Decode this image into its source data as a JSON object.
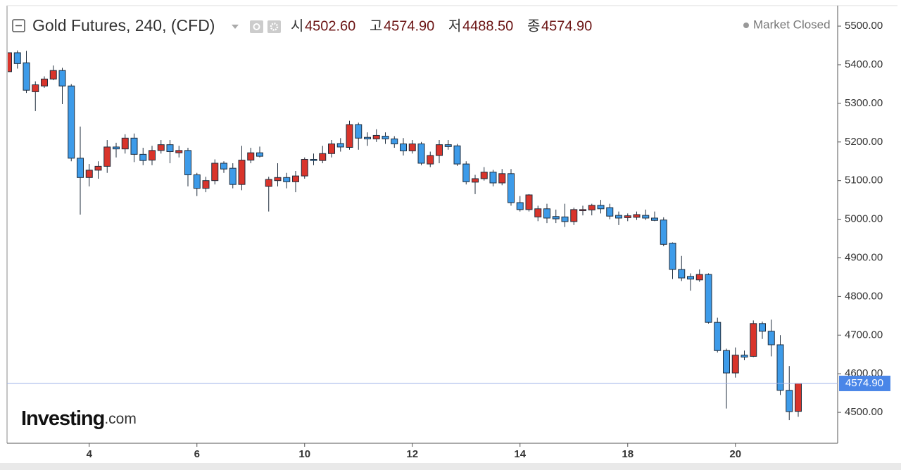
{
  "chart_data": {
    "type": "candlestick",
    "title": "Gold Futures, 240, (CFD)",
    "ohlc_legend": [
      {
        "label": "시",
        "value": "4502.60"
      },
      {
        "label": "고",
        "value": "4574.90"
      },
      {
        "label": "저",
        "value": "4488.50"
      },
      {
        "label": "종",
        "value": "4574.90"
      }
    ],
    "status": "Market Closed",
    "logo": {
      "brand": "Investing",
      "suffix": ".com"
    },
    "last_price": {
      "value": 4574.9,
      "label": "4574.90"
    },
    "up_color": "#d9342b",
    "down_color": "#3d9be9",
    "border_color": "#1f2d3d",
    "price_line_color": "#9fb3e8",
    "categories": [
      null,
      null,
      null,
      null,
      null,
      null,
      null,
      null,
      null,
      "4",
      null,
      null,
      null,
      null,
      null,
      null,
      null,
      null,
      null,
      null,
      null,
      "6",
      null,
      null,
      null,
      null,
      null,
      null,
      null,
      null,
      null,
      null,
      null,
      "10",
      null,
      null,
      null,
      null,
      null,
      null,
      null,
      null,
      null,
      null,
      null,
      "12",
      null,
      null,
      null,
      null,
      null,
      null,
      null,
      null,
      null,
      null,
      null,
      "14",
      null,
      null,
      null,
      null,
      null,
      null,
      null,
      null,
      null,
      null,
      null,
      "18",
      null,
      null,
      null,
      null,
      null,
      null,
      null,
      null,
      null,
      null,
      null,
      "20",
      null,
      null,
      null,
      null,
      null,
      null,
      null
    ],
    "open": [
      5382,
      5431,
      5405,
      5330,
      5345,
      5363,
      5385,
      5345,
      5158,
      5108,
      5127,
      5137,
      5187,
      5182,
      5210,
      5168,
      5153,
      5178,
      5193,
      5172,
      5178,
      5115,
      5080,
      5100,
      5145,
      5132,
      5090,
      5153,
      5172,
      5085,
      5100,
      5108,
      5097,
      5112,
      5155,
      5152,
      5170,
      5196,
      5186,
      5245,
      5212,
      5208,
      5215,
      5208,
      5195,
      5177,
      5195,
      5143,
      5165,
      5193,
      5190,
      5143,
      5096,
      5105,
      5122,
      5094,
      5118,
      5043,
      5025,
      5006,
      5027,
      5007,
      5006,
      4994,
      5022,
      5024,
      5036,
      5030,
      5010,
      5004,
      5005,
      5010,
      5003,
      4998,
      4938,
      4870,
      4852,
      4843,
      4857,
      4733,
      4660,
      4602,
      4648,
      4645,
      4730,
      4710,
      4675,
      4557,
      4502.6
    ],
    "high": [
      5431,
      5437,
      5436,
      5357,
      5370,
      5398,
      5392,
      5350,
      5240,
      5143,
      5150,
      5205,
      5198,
      5220,
      5222,
      5185,
      5190,
      5205,
      5205,
      5190,
      5185,
      5120,
      5110,
      5155,
      5150,
      5145,
      5190,
      5185,
      5188,
      5110,
      5145,
      5120,
      5125,
      5160,
      5170,
      5190,
      5205,
      5210,
      5255,
      5250,
      5225,
      5233,
      5225,
      5215,
      5210,
      5205,
      5200,
      5175,
      5205,
      5205,
      5195,
      5150,
      5115,
      5135,
      5128,
      5130,
      5130,
      5060,
      5065,
      5035,
      5040,
      5025,
      5040,
      5030,
      5035,
      5040,
      5050,
      5040,
      5020,
      5015,
      5020,
      5025,
      5020,
      5005,
      4940,
      4905,
      4860,
      4870,
      4860,
      4745,
      4665,
      4668,
      4660,
      4738,
      4735,
      4740,
      4700,
      4620,
      4574.9
    ],
    "low": [
      5382,
      5390,
      5327,
      5280,
      5340,
      5360,
      5298,
      5150,
      5012,
      5085,
      5105,
      5120,
      5160,
      5170,
      5148,
      5140,
      5140,
      5170,
      5145,
      5160,
      5085,
      5060,
      5070,
      5090,
      5120,
      5080,
      5075,
      5145,
      5160,
      5020,
      5085,
      5080,
      5070,
      5105,
      5140,
      5145,
      5160,
      5175,
      5180,
      5180,
      5190,
      5200,
      5195,
      5185,
      5165,
      5170,
      5140,
      5135,
      5145,
      5180,
      5138,
      5090,
      5065,
      5100,
      5085,
      5088,
      5035,
      5020,
      5020,
      4995,
      4990,
      4990,
      4980,
      4985,
      5010,
      5010,
      5015,
      5000,
      4985,
      4995,
      4998,
      4998,
      4995,
      4930,
      4845,
      4840,
      4815,
      4838,
      4730,
      4655,
      4510,
      4590,
      4635,
      4643,
      4690,
      4645,
      4545,
      4480,
      4488.5
    ],
    "close": [
      5431,
      5403,
      5334,
      5348,
      5363,
      5385,
      5345,
      5158,
      5108,
      5127,
      5137,
      5187,
      5182,
      5210,
      5168,
      5152,
      5178,
      5193,
      5175,
      5178,
      5115,
      5080,
      5100,
      5145,
      5130,
      5090,
      5153,
      5172,
      5163,
      5103,
      5108,
      5097,
      5112,
      5155,
      5152,
      5170,
      5195,
      5187,
      5245,
      5210,
      5208,
      5217,
      5208,
      5195,
      5177,
      5195,
      5145,
      5165,
      5193,
      5188,
      5143,
      5097,
      5105,
      5122,
      5094,
      5118,
      5043,
      5025,
      5063,
      5027,
      5003,
      5001,
      4994,
      5025,
      5025,
      5036,
      5027,
      5008,
      5003,
      5009,
      5012,
      5003,
      4997,
      4935,
      4870,
      4848,
      4845,
      4857,
      4733,
      4660,
      4602,
      4648,
      4643,
      4730,
      4710,
      4675,
      4557,
      4502,
      4574.9
    ],
    "ylim": [
      4420,
      5553
    ],
    "yticks": [
      {
        "value": 4500,
        "label": "4500.00"
      },
      {
        "value": 4600,
        "label": "4600.00"
      },
      {
        "value": 4700,
        "label": "4700.00"
      },
      {
        "value": 4800,
        "label": "4800.00"
      },
      {
        "value": 4900,
        "label": "4900.00"
      },
      {
        "value": 5000,
        "label": "5000.00"
      },
      {
        "value": 5100,
        "label": "5100.00"
      },
      {
        "value": 5200,
        "label": "5200.00"
      },
      {
        "value": 5300,
        "label": "5300.00"
      },
      {
        "value": 5400,
        "label": "5400.00"
      },
      {
        "value": 5500,
        "label": "5500.00"
      }
    ]
  }
}
